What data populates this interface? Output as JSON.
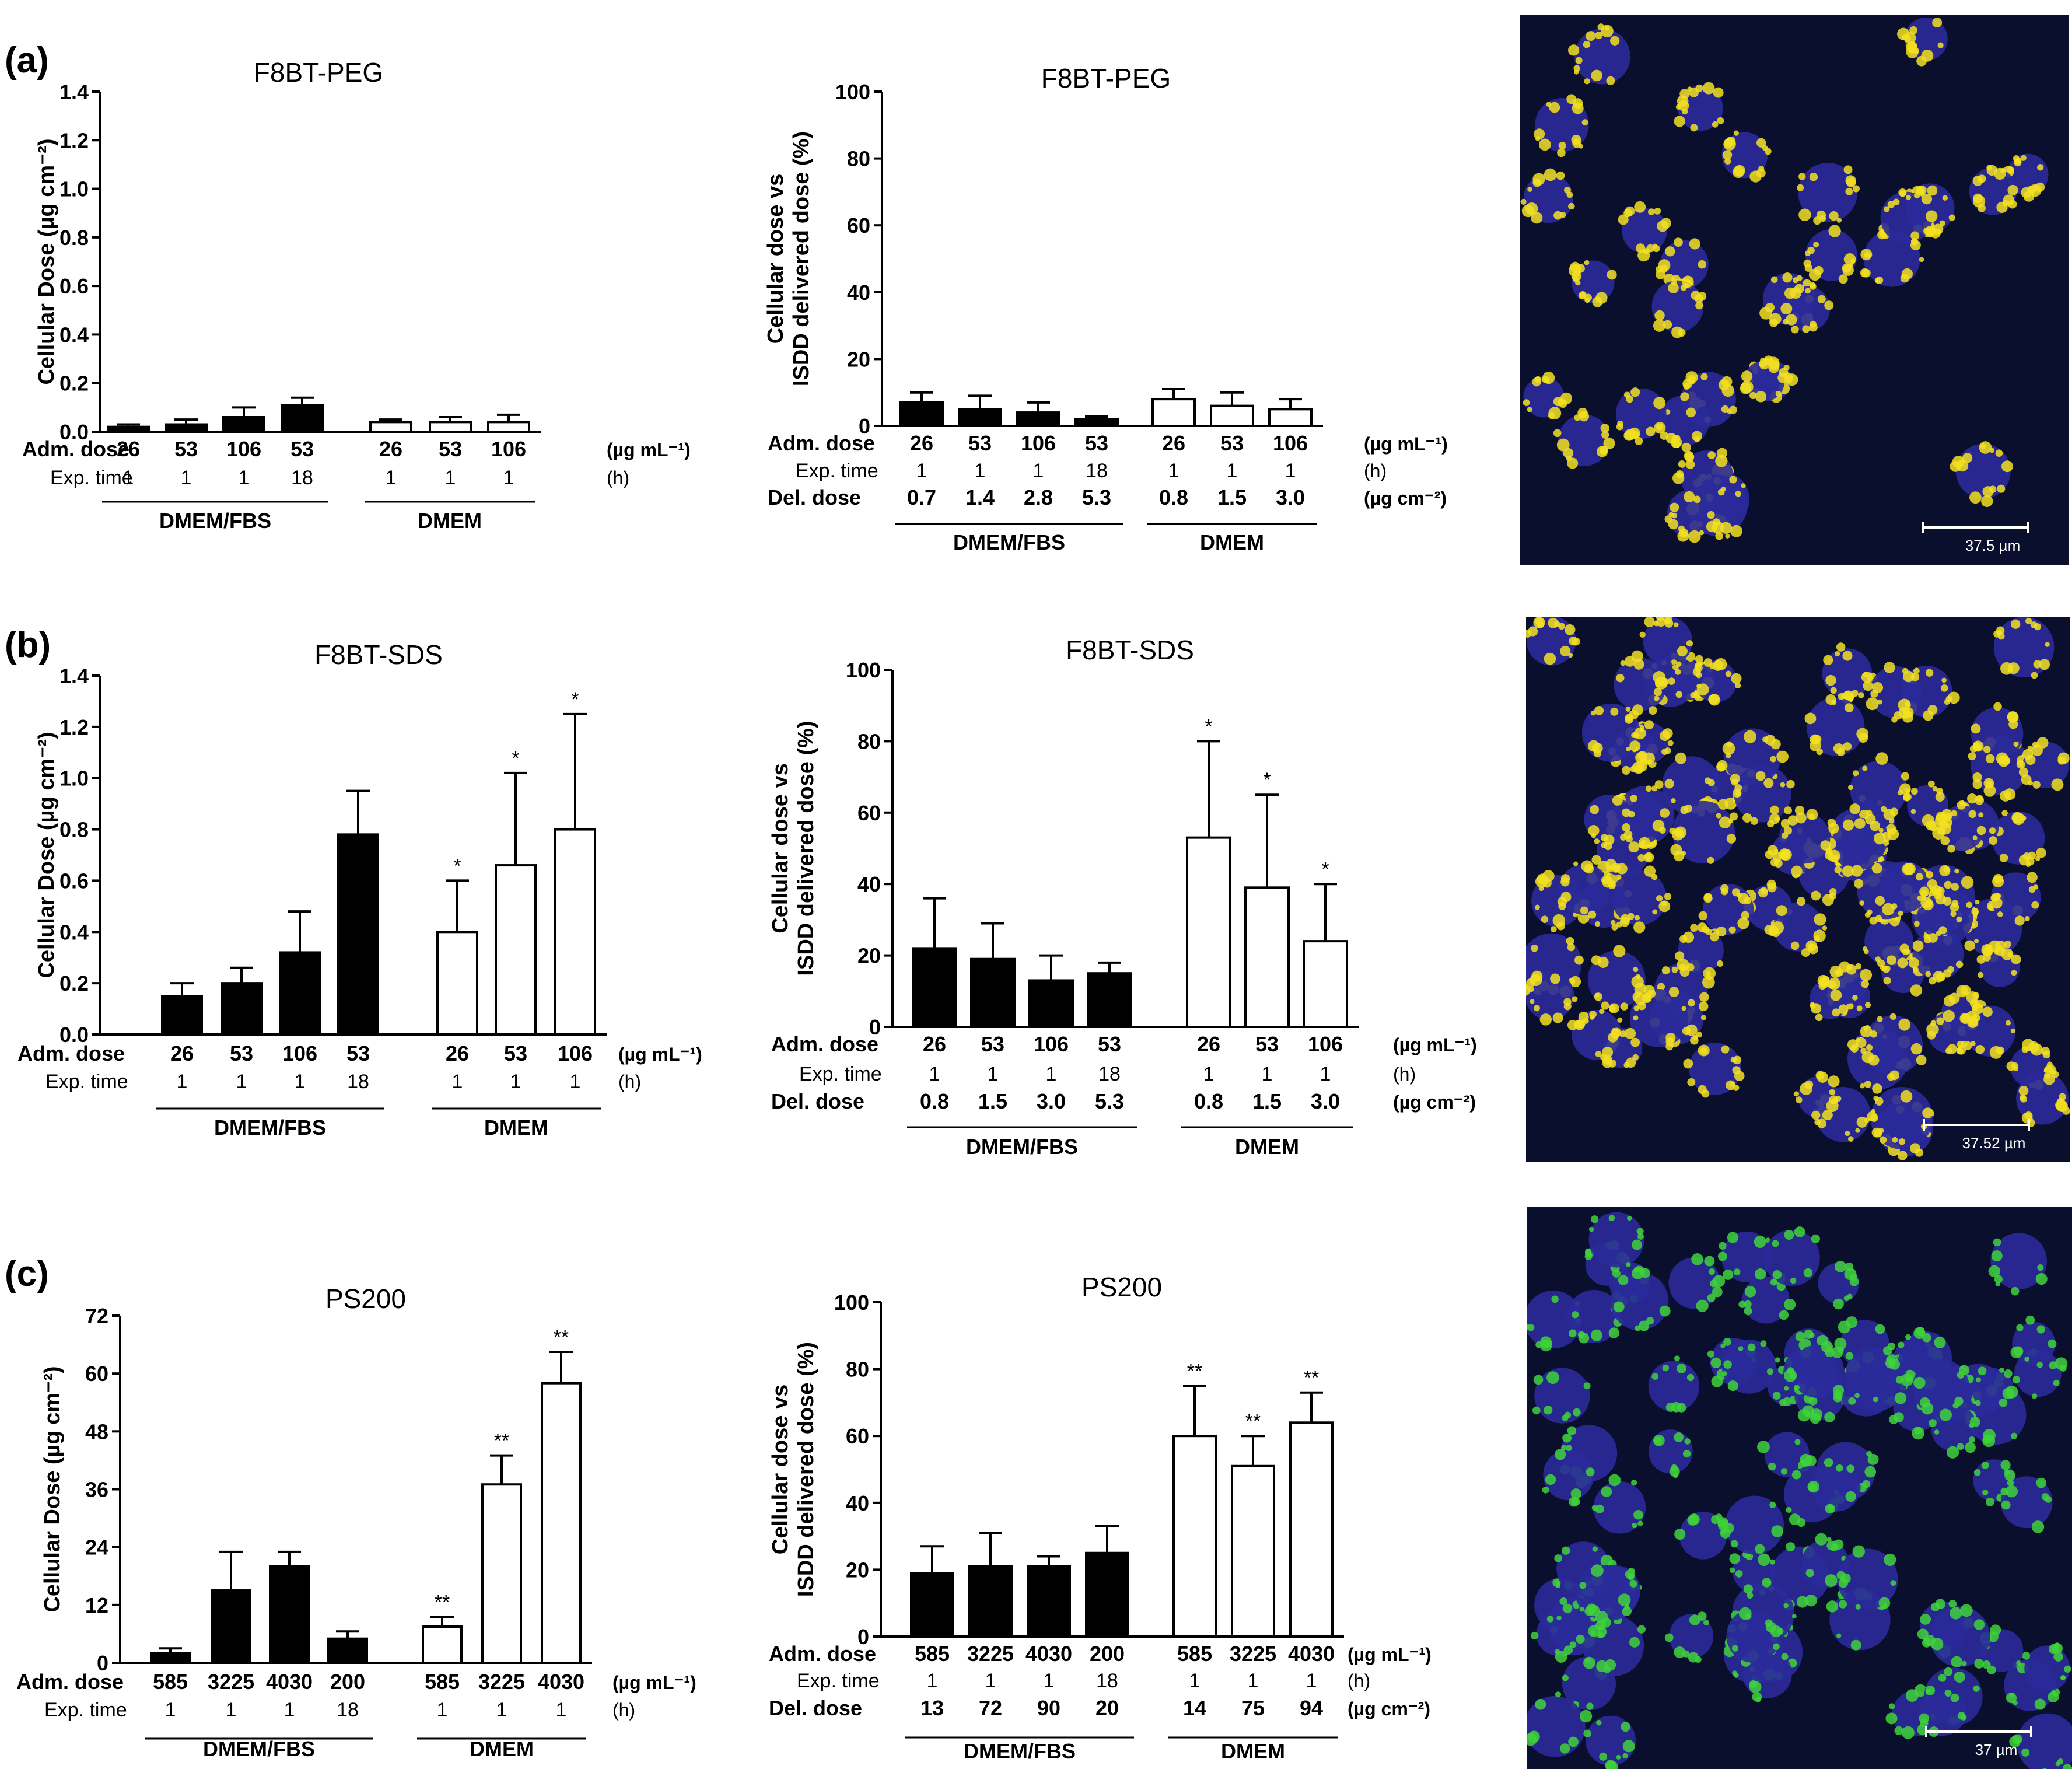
{
  "panel_letters": [
    "(a)",
    "(b)",
    "(c)"
  ],
  "colors": {
    "fbs_fill": "#000000",
    "dmem_fill": "#ffffff",
    "ink": "#000000",
    "micro_bg": "#0a0f2e",
    "yellow": "#f2e020",
    "green": "#3fd23a",
    "nucleus": "#2a2a9a",
    "scalebar": "#ffffff"
  },
  "row_labels": {
    "adm": "Adm. dose",
    "exp": "Exp. time",
    "del": "Del. dose"
  },
  "unit_labels": {
    "adm": "(µg mL⁻¹)",
    "exp": "(h)",
    "del": "(µg cm⁻²)"
  },
  "group_labels": {
    "fbs": "DMEM/FBS",
    "dmem": "DMEM"
  },
  "exp_times": {
    "fbs": [
      "1",
      "1",
      "1",
      "18"
    ],
    "dmem": [
      "1",
      "1",
      "1"
    ]
  },
  "micrographs": [
    {
      "stain": "yellow",
      "scalebar_label": "37.5 µm"
    },
    {
      "stain": "yellow",
      "scalebar_label": "37.52 µm"
    },
    {
      "stain": "green",
      "scalebar_label": "37 µm"
    }
  ],
  "chart_data": [
    {
      "type": "bar",
      "panel": "a",
      "title": "F8BT-PEG",
      "ylabel": "Cellular Dose (µg cm⁻²)",
      "ylim": [
        0,
        1.4
      ],
      "yticks": [
        "0.0",
        "0.2",
        "0.4",
        "0.6",
        "0.8",
        "1.0",
        "1.2",
        "1.4"
      ],
      "series": [
        {
          "name": "DMEM/FBS",
          "adm_dose": [
            "26",
            "53",
            "106",
            "53"
          ],
          "values": [
            0.02,
            0.03,
            0.06,
            0.11
          ],
          "errors": [
            0.01,
            0.02,
            0.04,
            0.03
          ],
          "stars": [
            "",
            "",
            "",
            ""
          ]
        },
        {
          "name": "DMEM",
          "adm_dose": [
            "26",
            "53",
            "106"
          ],
          "values": [
            0.04,
            0.04,
            0.04
          ],
          "errors": [
            0.01,
            0.02,
            0.03
          ],
          "stars": [
            "",
            "",
            ""
          ]
        }
      ]
    },
    {
      "type": "bar",
      "panel": "a",
      "title": "F8BT-PEG",
      "ylabel": "Cellular dose vs ISDD delivered dose (%)",
      "ylim": [
        0,
        100
      ],
      "yticks": [
        "0",
        "20",
        "40",
        "60",
        "80",
        "100"
      ],
      "series": [
        {
          "name": "DMEM/FBS",
          "adm_dose": [
            "26",
            "53",
            "106",
            "53"
          ],
          "del_dose": [
            "0.7",
            "1.4",
            "2.8",
            "5.3"
          ],
          "values": [
            7,
            5,
            4,
            2
          ],
          "errors": [
            3,
            4,
            3,
            0.8
          ],
          "stars": [
            "",
            "",
            "",
            ""
          ]
        },
        {
          "name": "DMEM",
          "adm_dose": [
            "26",
            "53",
            "106"
          ],
          "del_dose": [
            "0.8",
            "1.5",
            "3.0"
          ],
          "values": [
            8,
            6,
            5
          ],
          "errors": [
            3,
            4,
            3
          ],
          "stars": [
            "",
            "",
            ""
          ]
        }
      ]
    },
    {
      "type": "bar",
      "panel": "b",
      "title": "F8BT-SDS",
      "ylabel": "Cellular Dose (µg cm⁻²)",
      "ylim": [
        0,
        1.4
      ],
      "yticks": [
        "0.0",
        "0.2",
        "0.4",
        "0.6",
        "0.8",
        "1.0",
        "1.2",
        "1.4"
      ],
      "series": [
        {
          "name": "DMEM/FBS",
          "adm_dose": [
            "26",
            "53",
            "106",
            "53"
          ],
          "values": [
            0.15,
            0.2,
            0.32,
            0.78
          ],
          "errors": [
            0.05,
            0.06,
            0.16,
            0.17
          ],
          "stars": [
            "",
            "",
            "",
            ""
          ]
        },
        {
          "name": "DMEM",
          "adm_dose": [
            "26",
            "53",
            "106"
          ],
          "values": [
            0.4,
            0.66,
            0.8
          ],
          "errors": [
            0.2,
            0.36,
            0.45
          ],
          "stars": [
            "*",
            "*",
            "*"
          ]
        }
      ]
    },
    {
      "type": "bar",
      "panel": "b",
      "title": "F8BT-SDS",
      "ylabel": "Cellular dose vs ISDD delivered dose (%)",
      "ylim": [
        0,
        100
      ],
      "yticks": [
        "0",
        "20",
        "40",
        "60",
        "80",
        "100"
      ],
      "series": [
        {
          "name": "DMEM/FBS",
          "adm_dose": [
            "26",
            "53",
            "106",
            "53"
          ],
          "del_dose": [
            "0.8",
            "1.5",
            "3.0",
            "5.3"
          ],
          "values": [
            22,
            19,
            13,
            15
          ],
          "errors": [
            14,
            10,
            7,
            3
          ],
          "stars": [
            "",
            "",
            "",
            ""
          ]
        },
        {
          "name": "DMEM",
          "adm_dose": [
            "26",
            "53",
            "106"
          ],
          "del_dose": [
            "0.8",
            "1.5",
            "3.0"
          ],
          "values": [
            53,
            39,
            24
          ],
          "errors": [
            27,
            26,
            16
          ],
          "stars": [
            "*",
            "*",
            "*"
          ]
        }
      ]
    },
    {
      "type": "bar",
      "panel": "c",
      "title": "PS200",
      "ylabel": "Cellular Dose (µg cm⁻²)",
      "ylim": [
        0,
        72
      ],
      "yticks": [
        "0",
        "12",
        "24",
        "36",
        "48",
        "60",
        "72"
      ],
      "series": [
        {
          "name": "DMEM/FBS",
          "adm_dose": [
            "585",
            "3225",
            "4030",
            "200"
          ],
          "values": [
            2,
            15,
            20,
            5
          ],
          "errors": [
            1,
            8,
            3,
            1.5
          ],
          "stars": [
            "",
            "",
            "",
            ""
          ]
        },
        {
          "name": "DMEM",
          "adm_dose": [
            "585",
            "3225",
            "4030"
          ],
          "values": [
            7.5,
            37,
            58
          ],
          "errors": [
            2,
            6,
            6.5
          ],
          "stars": [
            "**",
            "**",
            "**"
          ]
        }
      ]
    },
    {
      "type": "bar",
      "panel": "c",
      "title": "PS200",
      "ylabel": "Cellular dose vs ISDD delivered dose (%)",
      "ylim": [
        0,
        100
      ],
      "yticks": [
        "0",
        "20",
        "40",
        "60",
        "80",
        "100"
      ],
      "series": [
        {
          "name": "DMEM/FBS",
          "adm_dose": [
            "585",
            "3225",
            "4030",
            "200"
          ],
          "del_dose": [
            "13",
            "72",
            "90",
            "20"
          ],
          "values": [
            19,
            21,
            21,
            25
          ],
          "errors": [
            8,
            10,
            3,
            8
          ],
          "stars": [
            "",
            "",
            "",
            ""
          ]
        },
        {
          "name": "DMEM",
          "adm_dose": [
            "585",
            "3225",
            "4030"
          ],
          "del_dose": [
            "14",
            "75",
            "94"
          ],
          "values": [
            60,
            51,
            64
          ],
          "errors": [
            15,
            9,
            9
          ],
          "stars": [
            "**",
            "**",
            "**"
          ]
        }
      ]
    }
  ]
}
